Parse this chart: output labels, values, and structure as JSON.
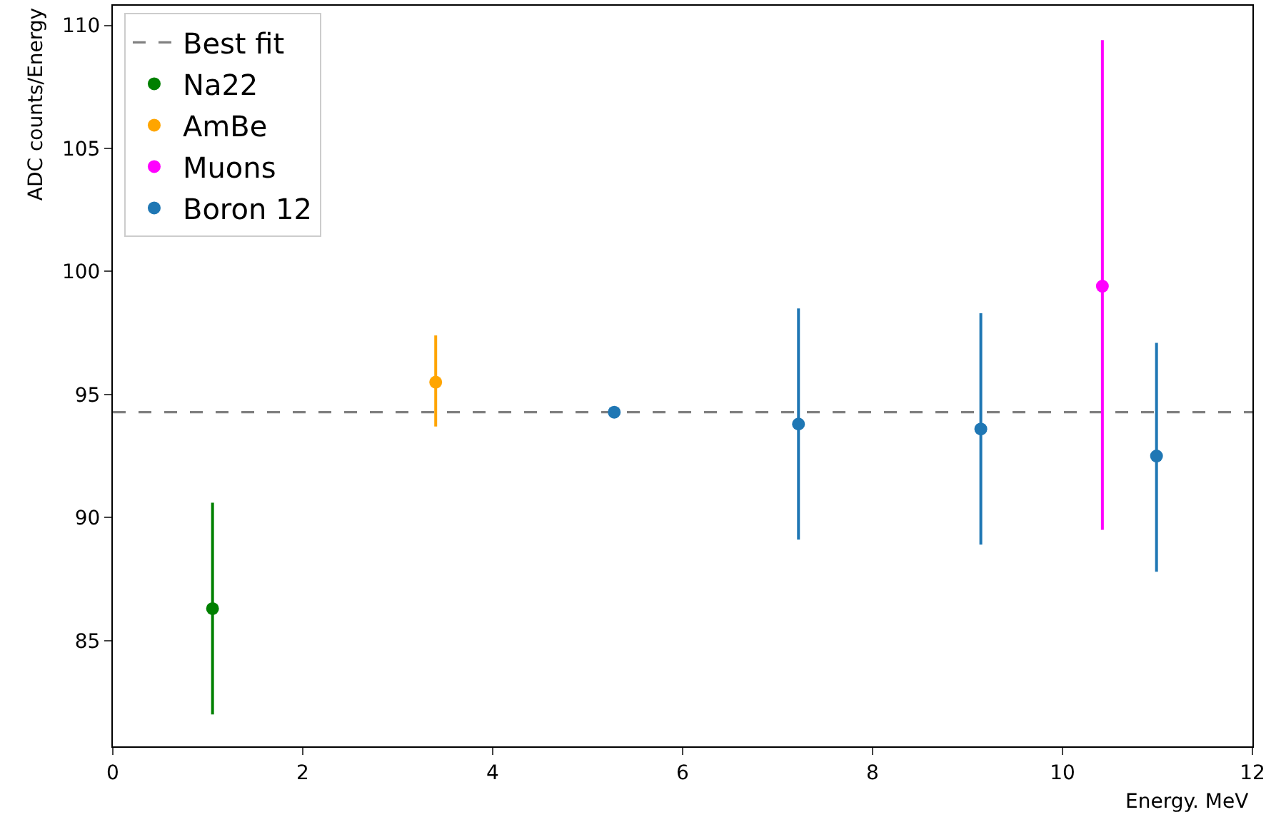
{
  "chart_data": {
    "type": "scatter",
    "xlabel": "Energy. MeV",
    "ylabel": "ADC counts/Energy",
    "xlim": [
      0,
      12
    ],
    "xticks": [
      0,
      2,
      4,
      6,
      8,
      10,
      12
    ],
    "ylim": [
      80.7,
      110.8
    ],
    "yticks": [
      85,
      90,
      95,
      100,
      105,
      110
    ],
    "grid": false,
    "legend": "top left",
    "marker": "circle",
    "ref_lines": [
      {
        "axis": "y",
        "value": 94.28,
        "label": "Best fit",
        "color": "#808080",
        "line_style": "dashed"
      }
    ],
    "series": [
      {
        "name": "Na22",
        "color": "#008000",
        "x": [
          1.05
        ],
        "values": [
          86.3
        ],
        "errors": [
          [
            82.0,
            90.6
          ]
        ]
      },
      {
        "name": "AmBe",
        "color": "#ffa500",
        "x": [
          3.4
        ],
        "values": [
          95.5
        ],
        "errors": [
          [
            93.7,
            97.4
          ]
        ]
      },
      {
        "name": "Muons",
        "color": "#ff00ff",
        "x": [
          10.42
        ],
        "values": [
          99.4
        ],
        "errors": [
          [
            89.5,
            109.4
          ]
        ]
      },
      {
        "name": "Boron 12",
        "color": "#1f77b4",
        "x": [
          5.28,
          7.22,
          9.14,
          10.99
        ],
        "values": [
          94.28,
          93.8,
          93.6,
          92.5
        ],
        "errors": [
          null,
          [
            89.1,
            98.5
          ],
          [
            88.9,
            98.3
          ],
          [
            87.8,
            97.1
          ]
        ]
      }
    ]
  }
}
